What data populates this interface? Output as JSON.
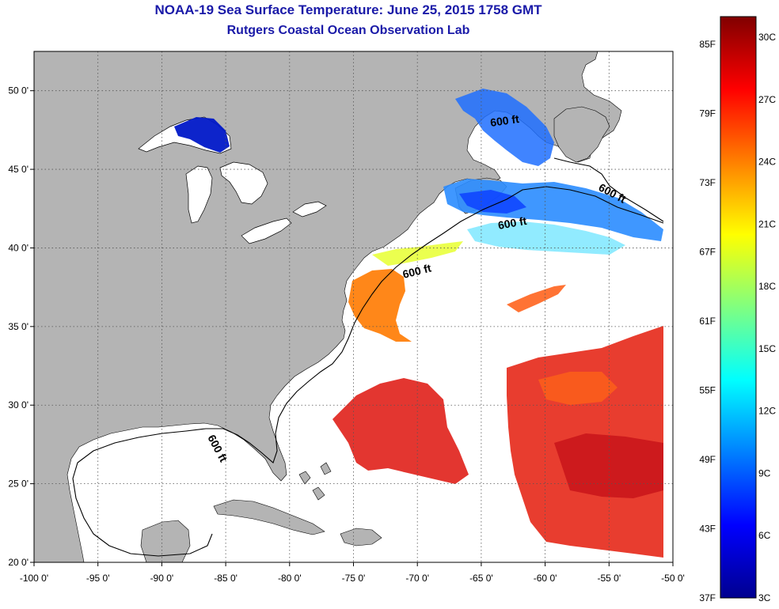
{
  "header": {
    "title": "NOAA-19 Sea Surface Temperature:  June 25, 2015 1758 GMT",
    "subtitle": "Rutgers Coastal Ocean Observation Lab"
  },
  "map": {
    "lon_min": -100,
    "lon_max": -50,
    "lat_min": 20,
    "lat_max": 52.5,
    "lon_ticks": [
      -100,
      -95,
      -90,
      -85,
      -80,
      -75,
      -70,
      -65,
      -60,
      -55,
      -50
    ],
    "lat_ticks": [
      20,
      25,
      30,
      35,
      40,
      45,
      50
    ],
    "lon_tick_labels": [
      "-100 0'",
      "-95 0'",
      "-90 0'",
      "-85 0'",
      "-80 0'",
      "-75 0'",
      "-70 0'",
      "-65 0'",
      "-60 0'",
      "-55 0'",
      "-50 0'"
    ],
    "lat_tick_labels": [
      "20 0'",
      "25 0'",
      "30 0'",
      "35 0'",
      "40 0'",
      "45 0'",
      "50 0'"
    ],
    "land_color": "#b4b4b4",
    "contour_label": "600 ft"
  },
  "colorbar": {
    "colors": [
      "#00008f",
      "#0000ff",
      "#0080ff",
      "#00ffff",
      "#80ff80",
      "#ffff00",
      "#ff8000",
      "#ff0000",
      "#800000"
    ],
    "f_labels": [
      "85F",
      "79F",
      "73F",
      "67F",
      "61F",
      "55F",
      "49F",
      "43F",
      "37F"
    ],
    "c_labels": [
      "30C",
      "27C",
      "24C",
      "21C",
      "18C",
      "15C",
      "12C",
      "9C",
      "6C",
      "3C"
    ]
  }
}
